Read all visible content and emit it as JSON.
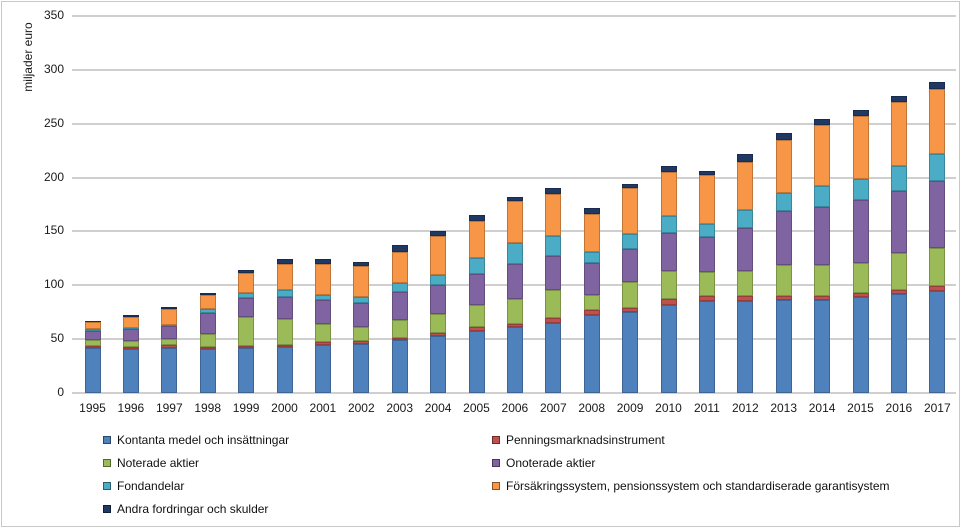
{
  "chart_data": {
    "type": "bar",
    "stacked": true,
    "title": "",
    "ylabel": "miljader euro",
    "xlabel": "",
    "ylim": [
      0,
      350
    ],
    "yticks": [
      0,
      50,
      100,
      150,
      200,
      250,
      300,
      350
    ],
    "grid": true,
    "legend_position": "bottom",
    "categories": [
      "1995",
      "1996",
      "1997",
      "1998",
      "1999",
      "2000",
      "2001",
      "2002",
      "2003",
      "2004",
      "2005",
      "2006",
      "2007",
      "2008",
      "2009",
      "2010",
      "2011",
      "2012",
      "2013",
      "2014",
      "2015",
      "2016",
      "2017"
    ],
    "series": [
      {
        "name": "Kontanta medel och insättningar",
        "color": "#4F81BD",
        "values": [
          42,
          41,
          42,
          41,
          42,
          43,
          45,
          46,
          49,
          53,
          58,
          61,
          65,
          72,
          75,
          82,
          85,
          85,
          86,
          86,
          89,
          92,
          95
        ]
      },
      {
        "name": "Penningsmarknadsinstrument",
        "color": "#C0504D",
        "values": [
          2,
          2,
          3,
          2,
          2,
          2,
          2,
          2,
          2,
          3,
          3,
          3,
          5,
          5,
          4,
          5,
          5,
          5,
          4,
          4,
          4,
          4,
          4
        ]
      },
      {
        "name": "Noterade aktier",
        "color": "#9BBB59",
        "values": [
          5,
          5,
          5,
          12,
          27,
          24,
          17,
          13,
          17,
          17,
          21,
          23,
          26,
          14,
          24,
          26,
          22,
          23,
          29,
          29,
          28,
          34,
          36
        ]
      },
      {
        "name": "Onoterade aktier",
        "color": "#8064A2",
        "values": [
          9,
          11,
          12,
          19,
          17,
          20,
          22,
          23,
          26,
          27,
          29,
          33,
          31,
          30,
          31,
          36,
          33,
          40,
          50,
          54,
          58,
          58,
          62
        ]
      },
      {
        "name": "Fondandelar",
        "color": "#4BACC6",
        "values": [
          1,
          1,
          1,
          4,
          5,
          7,
          5,
          5,
          8,
          10,
          14,
          19,
          19,
          10,
          14,
          15,
          12,
          17,
          17,
          19,
          20,
          23,
          25
        ]
      },
      {
        "name": "Försäkringssystem, pensionssystem och standardiserade garantisystem",
        "color": "#F79646",
        "values": [
          7,
          11,
          15,
          13,
          18,
          24,
          29,
          29,
          29,
          36,
          35,
          39,
          39,
          35,
          42,
          41,
          45,
          44,
          49,
          57,
          58,
          59,
          60
        ]
      },
      {
        "name": "Andra fordringar och skulder",
        "color": "#203864",
        "values": [
          1,
          1,
          2,
          2,
          3,
          4,
          4,
          4,
          6,
          4,
          5,
          4,
          5,
          6,
          4,
          6,
          4,
          8,
          6,
          5,
          6,
          6,
          7
        ]
      }
    ]
  },
  "legend": {
    "column1_indices": [
      0,
      2,
      4,
      6
    ],
    "column2_indices": [
      1,
      3,
      5
    ]
  },
  "colors": {
    "gridline": "#cfcfcf",
    "frame_border": "#c9c9c9",
    "text": "#1a1a1a"
  }
}
